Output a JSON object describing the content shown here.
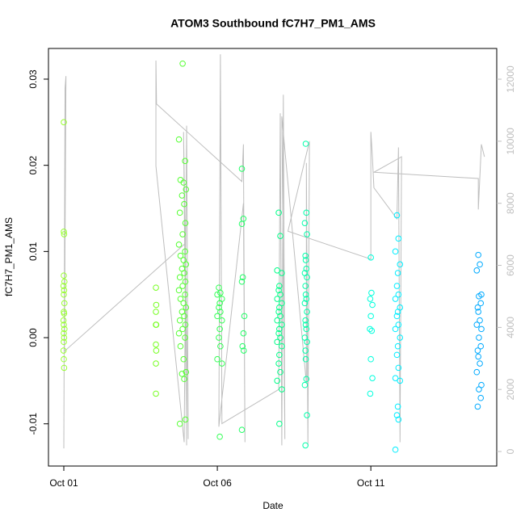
{
  "chart_data": {
    "type": "scatter",
    "title": "ATOM3 Southbound fC7H7_PM1_AMS",
    "x_label": "Date",
    "y_label": "fC7H7_PM1_AMS",
    "xlim": [
      0.5,
      15.1
    ],
    "ylim": [
      -0.0149,
      0.03356
    ],
    "y2lim": [
      -468,
      12990
    ],
    "xticks": [
      {
        "value": 1,
        "label": "Oct 01"
      },
      {
        "value": 6,
        "label": "Oct 06"
      },
      {
        "value": 11,
        "label": "Oct 11"
      }
    ],
    "yticks": [
      -0.01,
      {
        "value": 0,
        "label": "0.00"
      },
      0.01,
      0.02,
      0.03
    ],
    "y2ticks": [
      0,
      2000,
      4000,
      6000,
      8000,
      10000,
      12000
    ],
    "series": [
      {
        "color": "#99ff33",
        "x": [
          1.0,
          1.0,
          1.01,
          1.0,
          1.02,
          0.99,
          1.01,
          1.0,
          1.02,
          1.0,
          1.01,
          0.99,
          1.0,
          1.02,
          1.0,
          1.01,
          1.0,
          0.99,
          1.0,
          1.01
        ],
        "values": [
          0.025,
          0.0123,
          0.012,
          0.0072,
          0.0065,
          0.006,
          0.0055,
          0.005,
          0.004,
          0.003,
          0.0028,
          0.002,
          0.0015,
          0.001,
          0.0005,
          0,
          -0.0005,
          -0.0015,
          -0.0025,
          -0.0035
        ]
      },
      {
        "color": "#77ff22",
        "x": [
          4.0,
          4.01,
          4.0,
          4.0,
          4.01,
          4.0,
          4.01,
          4.0,
          4.0
        ],
        "values": [
          0.0058,
          0.0038,
          0.003,
          0.0015,
          0.0015,
          -0.0008,
          -0.0015,
          -0.003,
          -0.0065
        ]
      },
      {
        "color": "#55ff33",
        "x": [
          4.87,
          4.75,
          4.95,
          4.8,
          4.9,
          4.98,
          4.85,
          4.92,
          4.78,
          4.96,
          4.87,
          4.75,
          4.95,
          4.8,
          4.9,
          4.98,
          4.85,
          4.92,
          4.78,
          4.96,
          4.87,
          4.75,
          4.95,
          4.8,
          4.9,
          4.98,
          4.85,
          4.92,
          4.78,
          4.96,
          4.87,
          4.75,
          4.95,
          4.8,
          4.9,
          4.98,
          4.85,
          4.92,
          4.78,
          4.96
        ],
        "values": [
          0.0318,
          0.023,
          0.0205,
          0.0183,
          0.018,
          0.0172,
          0.0165,
          0.0155,
          0.0145,
          0.0133,
          0.012,
          0.0108,
          0.01,
          0.0095,
          0.009,
          0.0085,
          0.008,
          0.0075,
          0.007,
          0.0065,
          0.006,
          0.0055,
          0.005,
          0.0045,
          0.004,
          0.0035,
          0.003,
          0.0025,
          0.002,
          0.0015,
          0.001,
          0.0005,
          0,
          -0.001,
          -0.0025,
          -0.004,
          -0.0042,
          -0.0048,
          -0.01,
          -0.0095
        ]
      },
      {
        "color": "#33ff55",
        "x": [
          6.05,
          6.1,
          6.0,
          6.15,
          6.08,
          6.05,
          6.1,
          6.0,
          6.15,
          6.08,
          6.05,
          6.1,
          6.0,
          6.15,
          6.08
        ],
        "values": [
          0.0058,
          0.0052,
          0.005,
          0.0045,
          0.004,
          0.0035,
          0.003,
          0.0025,
          0.002,
          0.001,
          0,
          -0.001,
          -0.0025,
          -0.003,
          -0.0115
        ]
      },
      {
        "color": "#22ff66",
        "x": [
          6.8,
          6.85,
          6.8,
          6.83,
          6.8,
          6.88,
          6.85,
          6.82,
          6.86,
          6.8
        ],
        "values": [
          0.0196,
          0.0138,
          0.0132,
          0.007,
          0.0065,
          0.0025,
          0.0005,
          -0.001,
          -0.0015,
          -0.0107
        ]
      },
      {
        "color": "#00ff88",
        "x": [
          8.0,
          8.05,
          7.95,
          8.1,
          8.02,
          8.0,
          8.05,
          7.95,
          8.1,
          8.02,
          8.0,
          8.05,
          7.95,
          8.1,
          8.02,
          8.0,
          8.05,
          7.95,
          8.1,
          8.02,
          8.0,
          8.05,
          7.95,
          8.1,
          8.02
        ],
        "values": [
          0.0145,
          0.0118,
          0.0078,
          0.0075,
          0.006,
          0.0055,
          0.005,
          0.0045,
          0.004,
          0.0035,
          0.003,
          0.0025,
          0.002,
          0.0015,
          0.001,
          0.0005,
          0,
          -0.0005,
          -0.001,
          -0.002,
          -0.003,
          -0.004,
          -0.005,
          -0.006,
          -0.01
        ]
      },
      {
        "color": "#00ffaa",
        "x": [
          8.88,
          8.9,
          8.85,
          8.92,
          8.87,
          8.88,
          8.9,
          8.85,
          8.92,
          8.87,
          8.88,
          8.9,
          8.85,
          8.92,
          8.87,
          8.88,
          8.9,
          8.85,
          8.92,
          8.87,
          8.88,
          8.9,
          8.85,
          8.92,
          8.87
        ],
        "values": [
          0.0225,
          0.0145,
          0.0133,
          0.012,
          0.0095,
          0.009,
          0.008,
          0.0075,
          0.007,
          0.006,
          0.005,
          0.0045,
          0.004,
          0.003,
          0.002,
          0.0015,
          0.001,
          0,
          -0.0005,
          -0.0015,
          -0.0025,
          -0.0048,
          -0.0055,
          -0.009,
          -0.0125
        ]
      },
      {
        "color": "#00ffdd",
        "x": [
          11.0,
          11.02,
          10.98,
          11.05,
          11.0,
          10.97,
          11.03,
          11.0,
          11.05,
          10.98
        ],
        "values": [
          0.0093,
          0.0052,
          0.0045,
          0.0038,
          0.0025,
          0.001,
          0.0008,
          -0.0025,
          -0.0047,
          -0.0065
        ]
      },
      {
        "color": "#00eeff",
        "x": [
          11.85,
          11.9,
          11.8,
          11.95,
          11.88,
          11.85,
          11.9,
          11.8,
          11.95,
          11.88,
          11.85,
          11.9,
          11.8,
          11.95,
          11.88,
          11.85,
          11.9,
          11.8,
          11.95,
          11.88,
          11.85,
          11.9,
          11.8
        ],
        "values": [
          0.0142,
          0.0115,
          0.01,
          0.0085,
          0.0075,
          0.006,
          0.005,
          0.0045,
          0.0035,
          0.003,
          0.0025,
          0.0015,
          0.001,
          0,
          -0.001,
          -0.002,
          -0.0035,
          -0.0047,
          -0.005,
          -0.008,
          -0.009,
          -0.0095,
          -0.013
        ]
      },
      {
        "color": "#00aaff",
        "x": [
          14.5,
          14.55,
          14.45,
          14.6,
          14.52,
          14.58,
          14.48,
          14.5,
          14.55,
          14.45,
          14.6,
          14.52,
          14.58,
          14.48,
          14.5,
          14.55,
          14.45,
          14.6,
          14.52,
          14.58,
          14.48
        ],
        "values": [
          0.0096,
          0.0085,
          0.0078,
          0.005,
          0.0048,
          0.004,
          0.0035,
          0.003,
          0.002,
          0.0015,
          0.001,
          0,
          -0.001,
          -0.0015,
          -0.0022,
          -0.003,
          -0.004,
          -0.0055,
          -0.006,
          -0.007,
          -0.008
        ]
      },
      {
        "type": "line",
        "axis": "y2",
        "color": "#bebebe",
        "x": [
          1.0,
          1.04,
          1.07,
          1.02,
          4.95,
          5.0,
          4.9,
          5.05,
          5.0,
          4.92,
          4.0,
          4.0,
          4.02,
          6.8,
          6.85,
          6.9,
          6.85,
          6.05,
          6.1,
          6.15,
          8.0,
          8.05,
          8.1,
          8.15,
          8.2,
          8.1,
          8.9,
          8.9,
          8.95,
          9.0,
          8.3,
          11.0,
          11.0,
          11.05,
          11.1,
          11.85,
          11.9,
          11.95,
          12.0,
          11.1,
          14.5,
          14.5,
          14.6,
          14.7
        ],
        "values": [
          100,
          11700,
          12100,
          3230,
          6700,
          200,
          10300,
          400,
          10500,
          300,
          9200,
          12600,
          11200,
          8700,
          9900,
          300,
          8000,
          800,
          12800,
          900,
          2000,
          10900,
          200,
          11500,
          400,
          10800,
          2200,
          9300,
          200,
          10000,
          7100,
          6200,
          10300,
          9500,
          8500,
          7500,
          9800,
          300,
          9500,
          9000,
          8800,
          7800,
          9900,
          9500
        ]
      }
    ]
  }
}
